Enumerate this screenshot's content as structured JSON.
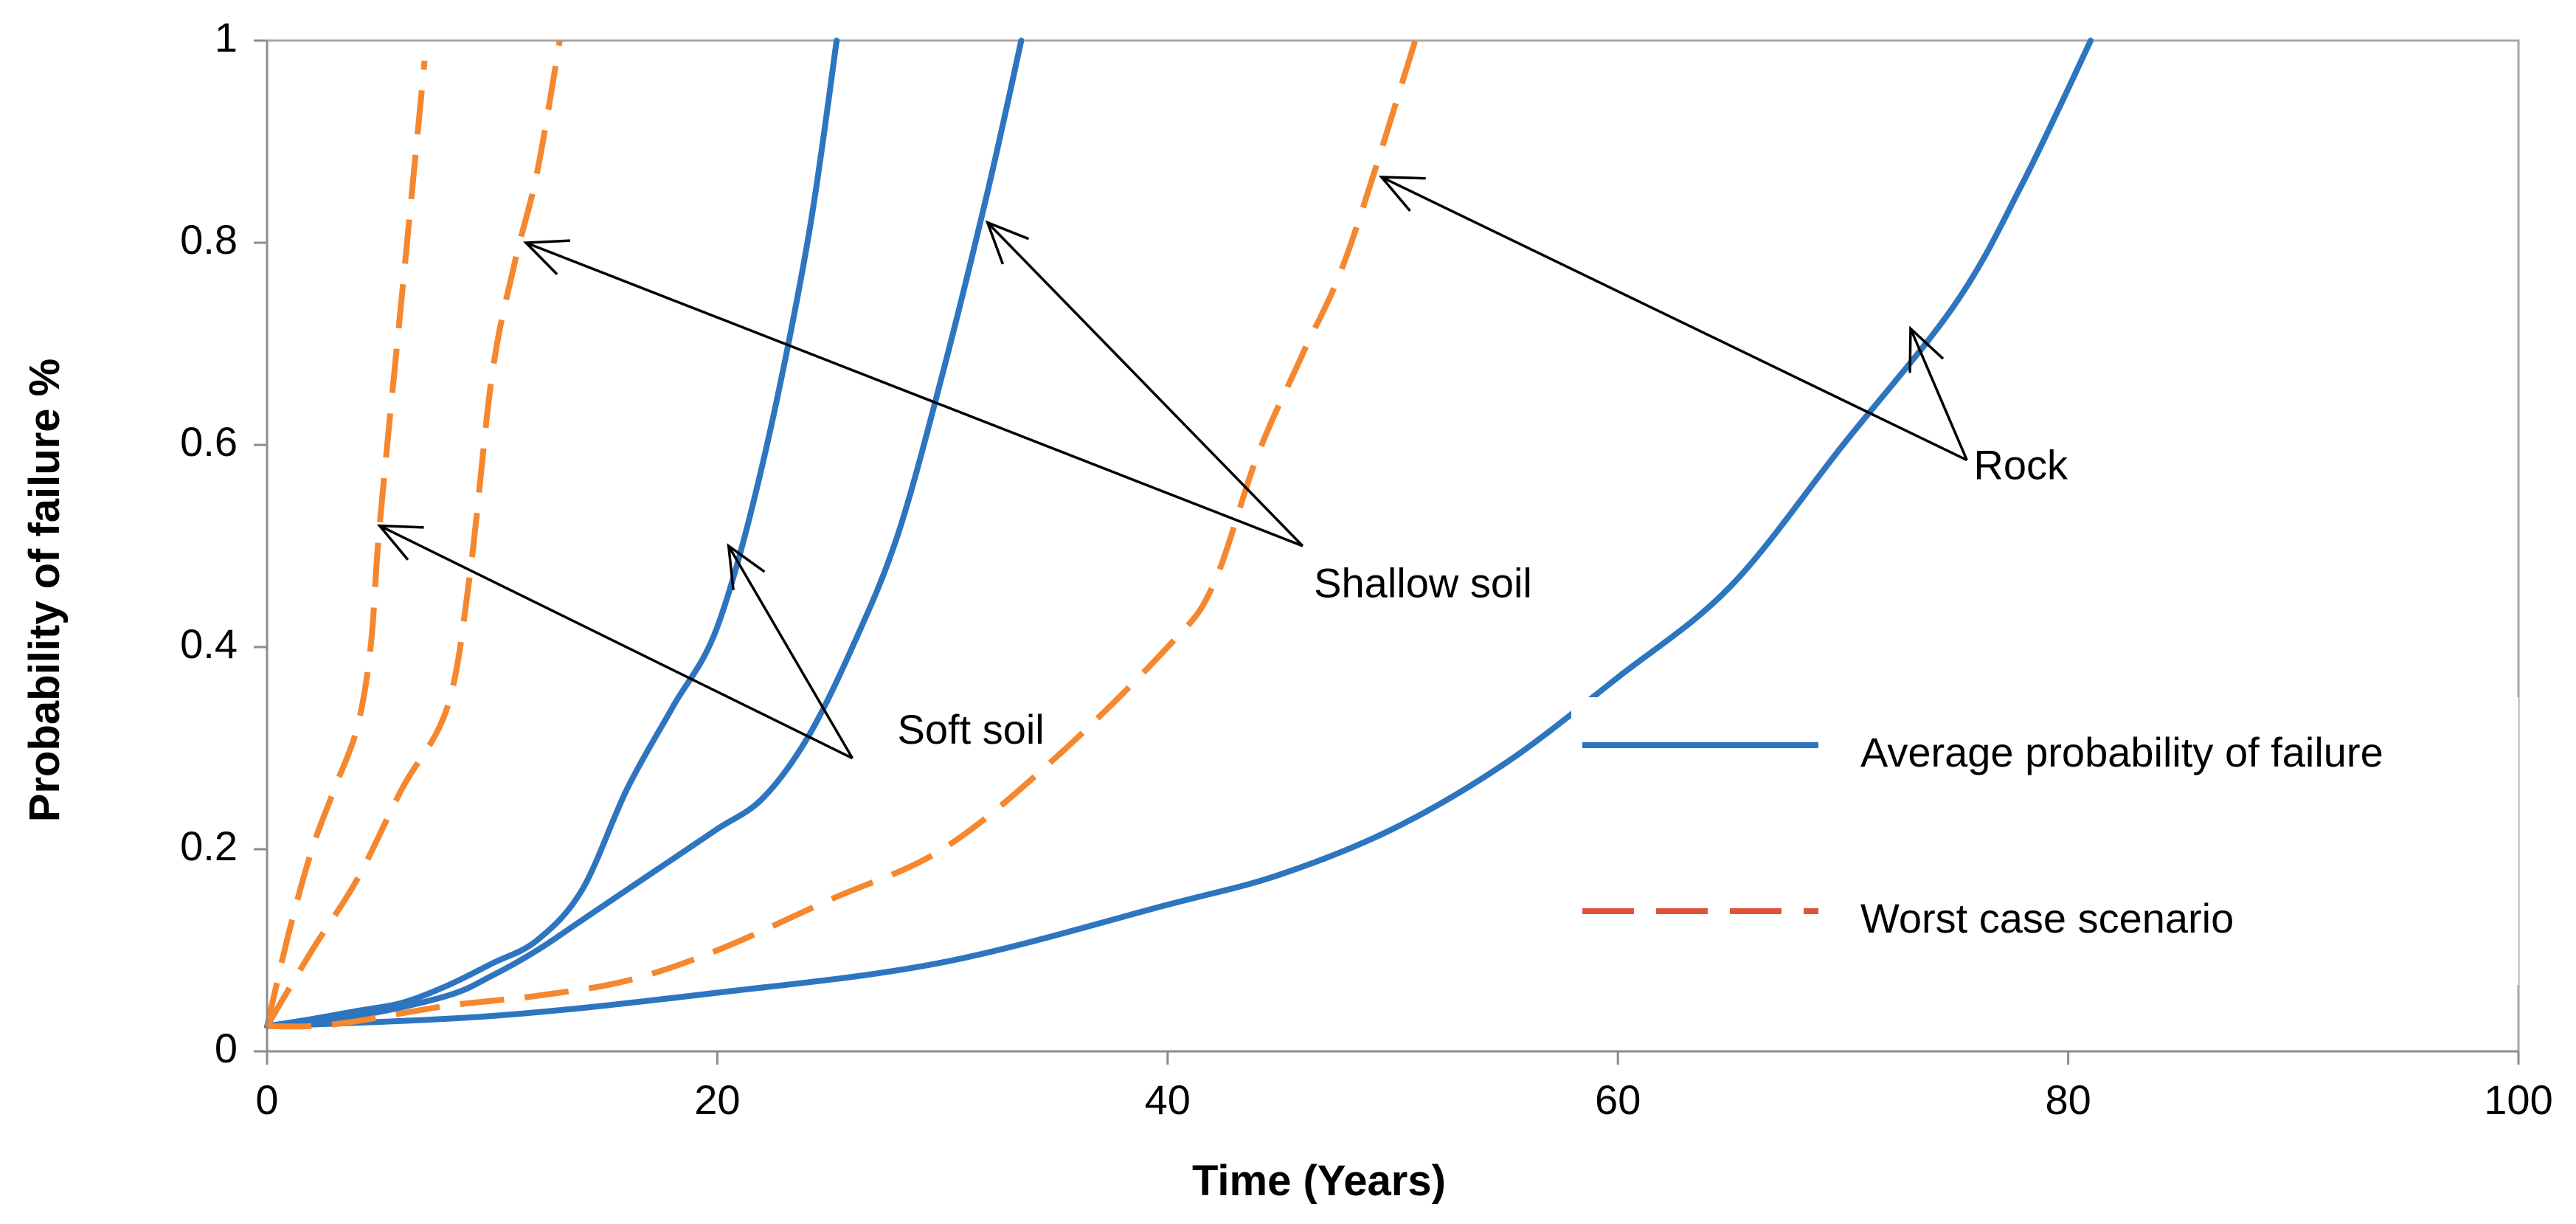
{
  "chart_data": {
    "type": "line",
    "title": "",
    "xlabel": "Time (Years)",
    "ylabel": "Probability of failure %",
    "xlim": [
      0,
      100
    ],
    "ylim": [
      0,
      1
    ],
    "xticks": [
      0,
      20,
      40,
      60,
      80,
      100
    ],
    "xtick_labels": [
      "0",
      "20",
      "40",
      "60",
      "80",
      "100"
    ],
    "yticks": [
      0,
      0.2,
      0.4,
      0.6,
      0.8,
      1
    ],
    "ytick_labels": [
      "0",
      "0.2",
      "0.4",
      "0.6",
      "0.8",
      "1"
    ],
    "grid": false,
    "legend_position": "right",
    "legend": [
      {
        "label": "Average probability of failure",
        "series_type": "average",
        "color": "#2e75c0",
        "style": "solid"
      },
      {
        "label": "Worst case scenario",
        "series_type": "worst",
        "color": "#e0523a",
        "style": "dashed"
      }
    ],
    "series": [
      {
        "name": "Soft soil - Average probability of failure",
        "group": "Soft soil",
        "kind": "average",
        "color": "#2e75c0",
        "style": "solid",
        "x": [
          0,
          2,
          4,
          6,
          8,
          10,
          12,
          14,
          16,
          18,
          20,
          22,
          24,
          25.3
        ],
        "y": [
          0.025,
          0.032,
          0.04,
          0.048,
          0.065,
          0.087,
          0.11,
          0.16,
          0.26,
          0.34,
          0.42,
          0.58,
          0.8,
          1.0
        ]
      },
      {
        "name": "Shallow soil - Average probability of failure",
        "group": "Shallow soil",
        "kind": "average",
        "color": "#2e75c0",
        "style": "solid",
        "x": [
          0,
          4,
          8,
          10,
          12,
          14,
          16,
          18,
          20,
          22,
          24,
          26,
          28,
          30,
          32,
          33.5
        ],
        "y": [
          0.025,
          0.035,
          0.055,
          0.075,
          0.1,
          0.13,
          0.16,
          0.19,
          0.22,
          0.25,
          0.31,
          0.4,
          0.51,
          0.67,
          0.85,
          1.0
        ]
      },
      {
        "name": "Rock - Average probability of failure",
        "group": "Rock",
        "kind": "average",
        "color": "#2e75c0",
        "style": "solid",
        "x": [
          0,
          10,
          20,
          30,
          40,
          45,
          50,
          55,
          60,
          65,
          70,
          75,
          78,
          81
        ],
        "y": [
          0.025,
          0.035,
          0.058,
          0.088,
          0.145,
          0.175,
          0.22,
          0.285,
          0.37,
          0.46,
          0.6,
          0.74,
          0.86,
          1.0
        ]
      },
      {
        "name": "Soft soil - Worst case scenario",
        "group": "Soft soil",
        "kind": "worst",
        "color": "#f5872f",
        "style": "dashed",
        "x": [
          0,
          1,
          2,
          3,
          4,
          4.6,
          5,
          6,
          7
        ],
        "y": [
          0.025,
          0.12,
          0.2,
          0.26,
          0.32,
          0.4,
          0.52,
          0.75,
          0.98
        ]
      },
      {
        "name": "Shallow soil - Worst case scenario",
        "group": "Shallow soil",
        "kind": "worst",
        "color": "#f5872f",
        "style": "dashed",
        "x": [
          0,
          2,
          4,
          6,
          8,
          9,
          10,
          11,
          12,
          13
        ],
        "y": [
          0.025,
          0.1,
          0.17,
          0.26,
          0.34,
          0.47,
          0.67,
          0.78,
          0.87,
          1.0
        ]
      },
      {
        "name": "Rock - Worst case scenario",
        "group": "Rock",
        "kind": "worst",
        "color": "#f5872f",
        "style": "dashed",
        "x": [
          0,
          2,
          4,
          8,
          12,
          16,
          20,
          25,
          30,
          35,
          40,
          42,
          44,
          46,
          48,
          51
        ],
        "y": [
          0.025,
          0.025,
          0.03,
          0.045,
          0.055,
          0.07,
          0.1,
          0.15,
          0.2,
          0.29,
          0.4,
          0.46,
          0.59,
          0.69,
          0.79,
          1.0
        ]
      }
    ],
    "annotations": [
      {
        "text": "Soft soil",
        "label_at": [
          28,
          0.315
        ],
        "arrows": [
          {
            "from": [
              26,
              0.29
            ],
            "to": [
              5,
              0.52
            ]
          },
          {
            "from": [
              26,
              0.29
            ],
            "to": [
              20.5,
              0.5
            ]
          }
        ]
      },
      {
        "text": "Shallow soil",
        "label_at": [
          46.5,
          0.46
        ],
        "arrows": [
          {
            "from": [
              46,
              0.5
            ],
            "to": [
              11.5,
              0.8
            ]
          },
          {
            "from": [
              46,
              0.5
            ],
            "to": [
              32,
              0.82
            ]
          }
        ]
      },
      {
        "text": "Rock",
        "label_at": [
          75.8,
          0.577
        ],
        "arrows": [
          {
            "from": [
              75.5,
              0.585
            ],
            "to": [
              49.5,
              0.865
            ]
          },
          {
            "from": [
              75.5,
              0.585
            ],
            "to": [
              73,
              0.715
            ]
          }
        ]
      }
    ]
  }
}
